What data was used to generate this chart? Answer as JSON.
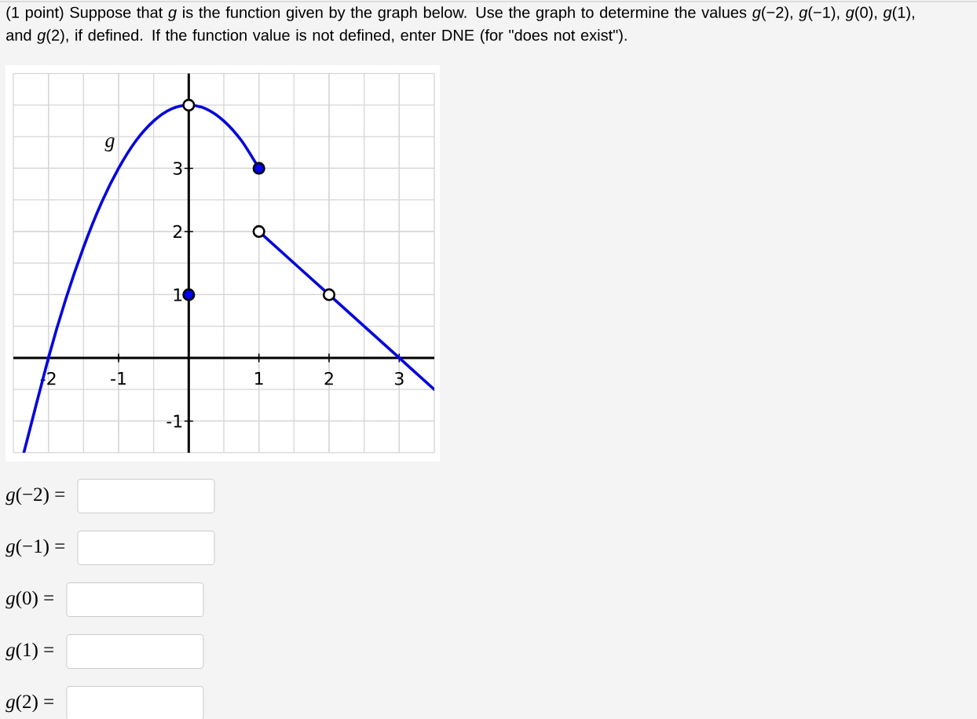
{
  "chart_data": {
    "type": "line",
    "title": "(1 point) Suppose that *g* is the function given by the graph below. Use the graph to determine the values *g*(−2), *g*(−1), *g*(0), *g*(1), and *g*(2), if defined. If the function value is not defined, enter DNE (for \"does not exist\").",
    "xlim": [
      -2.5,
      3.5
    ],
    "ylim": [
      -1.5,
      4.5
    ],
    "xticks": [
      -2,
      -1,
      1,
      2,
      3
    ],
    "yticks": [
      -1,
      1,
      2,
      3
    ],
    "grid": true,
    "series": [
      {
        "color": "#0000ff",
        "marker": "none",
        "x": [
          -2.35,
          -2,
          -1.75,
          -1.5,
          -1.25,
          -1,
          -0.75,
          -0.5,
          -0.25,
          0,
          0.25,
          0.5,
          0.75,
          1
        ],
        "values": [
          -1.5,
          0,
          0.94,
          1.75,
          2.44,
          3,
          3.44,
          3.75,
          3.94,
          4,
          3.94,
          3.75,
          3.44,
          3
        ]
      },
      {
        "color": "#0000ff",
        "marker": "none",
        "x": [
          1,
          2,
          3,
          3.5
        ],
        "values": [
          2,
          1,
          0,
          -0.5
        ]
      },
      {
        "type": "scatter",
        "color": "#ffffff",
        "marker": "circle",
        "x": [
          0,
          1,
          2
        ],
        "values": [
          4,
          2,
          1
        ]
      },
      {
        "type": "scatter",
        "color": "#0000ff",
        "marker": "circle",
        "x": [
          1,
          0
        ],
        "values": [
          3,
          1
        ]
      }
    ],
    "annotations": [
      "g",
      "*g*(−2) =",
      "*g*(−1) =",
      "*g*(0) =",
      "*g*(1) =",
      "*g*(2) ="
    ]
  }
}
